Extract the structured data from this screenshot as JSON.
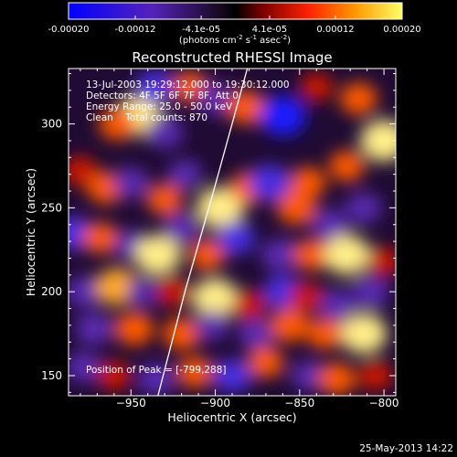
{
  "chart_data": {
    "type": "heatmap",
    "title": "Reconstructed RHESSI Image",
    "colorbar": {
      "ticks": [
        "-0.00020",
        "-0.00012",
        "-4.1e-05",
        "4.1e-05",
        "0.00012",
        "0.00020"
      ],
      "tick_values": [
        -0.0002,
        -0.00012,
        -4.1e-05,
        4.1e-05,
        0.00012,
        0.0002
      ],
      "range": [
        -0.0002,
        0.0002
      ],
      "unit_text": "(photons cm",
      "unit_exp1": "-2",
      "unit_mid": " s",
      "unit_exp2": "-1",
      "unit_end": " asec",
      "unit_exp3": "-2",
      "unit_close": ")"
    },
    "xlabel": "Heliocentric X (arcsec)",
    "ylabel": "Heliocentric Y (arcsec)",
    "xlim": [
      -987,
      -793
    ],
    "ylim": [
      138,
      333
    ],
    "x_ticks": [
      -950,
      -900,
      -850,
      -800
    ],
    "x_tick_labels": [
      "−950",
      "−900",
      "−850",
      "−800"
    ],
    "y_ticks": [
      150,
      200,
      250,
      300
    ],
    "y_tick_labels": [
      "150",
      "200",
      "250",
      "300"
    ],
    "annotations": [
      "13-Jul-2003 19:29:12.000 to 19:30:12.000",
      "Detectors: 4F 5F 6F 7F 8F, Att 0",
      "Energy Range: 25.0 - 50.0 keV",
      "Clean    Total counts: 870"
    ],
    "peak_label": "Position of Peak = [-799,288]",
    "limb_curve": [
      [
        -934,
        138
      ],
      [
        -918,
        200
      ],
      [
        -901,
        260
      ],
      [
        -881,
        333
      ]
    ],
    "blobs": [
      {
        "x": -945,
        "y": 305,
        "v": 0.85
      },
      {
        "x": -958,
        "y": 300,
        "v": 0.55
      },
      {
        "x": -936,
        "y": 322,
        "v": -0.6
      },
      {
        "x": -930,
        "y": 295,
        "v": -0.55
      },
      {
        "x": -915,
        "y": 322,
        "v": 0.5
      },
      {
        "x": -900,
        "y": 315,
        "v": -0.5
      },
      {
        "x": -882,
        "y": 310,
        "v": 0.6
      },
      {
        "x": -860,
        "y": 305,
        "v": -0.85
      },
      {
        "x": -840,
        "y": 322,
        "v": 0.4
      },
      {
        "x": -815,
        "y": 315,
        "v": 0.55
      },
      {
        "x": -800,
        "y": 290,
        "v": 0.9
      },
      {
        "x": -822,
        "y": 275,
        "v": 0.5
      },
      {
        "x": -980,
        "y": 272,
        "v": 0.45
      },
      {
        "x": -965,
        "y": 262,
        "v": 0.55
      },
      {
        "x": -950,
        "y": 265,
        "v": -0.5
      },
      {
        "x": -930,
        "y": 255,
        "v": 0.5
      },
      {
        "x": -918,
        "y": 270,
        "v": -0.45
      },
      {
        "x": -897,
        "y": 250,
        "v": 0.9
      },
      {
        "x": -880,
        "y": 262,
        "v": 0.55
      },
      {
        "x": -868,
        "y": 265,
        "v": -0.7
      },
      {
        "x": -852,
        "y": 250,
        "v": 0.6
      },
      {
        "x": -845,
        "y": 265,
        "v": 0.5
      },
      {
        "x": -832,
        "y": 240,
        "v": -0.55
      },
      {
        "x": -812,
        "y": 250,
        "v": -0.5
      },
      {
        "x": -985,
        "y": 235,
        "v": -0.6
      },
      {
        "x": -968,
        "y": 232,
        "v": 0.5
      },
      {
        "x": -950,
        "y": 228,
        "v": -0.45
      },
      {
        "x": -934,
        "y": 222,
        "v": 0.85
      },
      {
        "x": -920,
        "y": 238,
        "v": -0.5
      },
      {
        "x": -905,
        "y": 222,
        "v": 0.5
      },
      {
        "x": -888,
        "y": 232,
        "v": -0.6
      },
      {
        "x": -862,
        "y": 222,
        "v": -0.55
      },
      {
        "x": -843,
        "y": 222,
        "v": 0.5
      },
      {
        "x": -822,
        "y": 222,
        "v": 0.85
      },
      {
        "x": -800,
        "y": 218,
        "v": 0.4
      },
      {
        "x": -978,
        "y": 200,
        "v": -0.5
      },
      {
        "x": -958,
        "y": 203,
        "v": 0.75
      },
      {
        "x": -943,
        "y": 200,
        "v": -0.4
      },
      {
        "x": -925,
        "y": 200,
        "v": 0.45
      },
      {
        "x": -900,
        "y": 196,
        "v": 0.85
      },
      {
        "x": -880,
        "y": 192,
        "v": 0.45
      },
      {
        "x": -860,
        "y": 200,
        "v": -0.6
      },
      {
        "x": -846,
        "y": 197,
        "v": 0.45
      },
      {
        "x": -828,
        "y": 192,
        "v": -0.5
      },
      {
        "x": -808,
        "y": 200,
        "v": -0.55
      },
      {
        "x": -972,
        "y": 178,
        "v": -0.55
      },
      {
        "x": -948,
        "y": 178,
        "v": 0.6
      },
      {
        "x": -920,
        "y": 175,
        "v": 0.55
      },
      {
        "x": -902,
        "y": 180,
        "v": -0.45
      },
      {
        "x": -876,
        "y": 175,
        "v": -0.5
      },
      {
        "x": -856,
        "y": 180,
        "v": 0.6
      },
      {
        "x": -835,
        "y": 175,
        "v": 0.5
      },
      {
        "x": -812,
        "y": 175,
        "v": 0.85
      },
      {
        "x": -978,
        "y": 155,
        "v": -0.5
      },
      {
        "x": -960,
        "y": 150,
        "v": 0.45
      },
      {
        "x": -935,
        "y": 148,
        "v": -0.55
      },
      {
        "x": -912,
        "y": 152,
        "v": 0.5
      },
      {
        "x": -890,
        "y": 150,
        "v": -0.6
      },
      {
        "x": -870,
        "y": 158,
        "v": 0.5
      },
      {
        "x": -845,
        "y": 150,
        "v": -0.45
      },
      {
        "x": -828,
        "y": 148,
        "v": 0.55
      },
      {
        "x": -805,
        "y": 150,
        "v": 0.45
      }
    ]
  },
  "footer": {
    "timestamp": "25-May-2013 14:22"
  }
}
